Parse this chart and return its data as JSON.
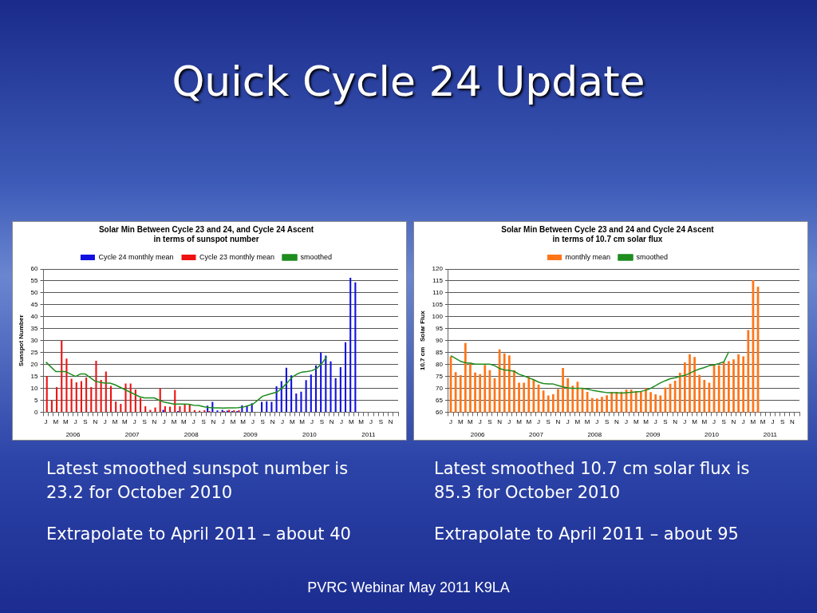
{
  "chart_data": [
    {
      "type": "bar",
      "title": "Solar Min Between Cycle 23 and 24, and Cycle 24 Ascent\nin terms of sunspot number",
      "ylabel": "Sunspot Number",
      "categories": [
        "J",
        null,
        "M",
        null,
        "M",
        null,
        "J",
        null,
        "S",
        null,
        "N",
        null,
        "J",
        null,
        "M",
        null,
        "M",
        null,
        "J",
        null,
        "S",
        null,
        "N",
        null,
        "J",
        null,
        "M",
        null,
        "M",
        null,
        "J",
        null,
        "S",
        null,
        "N",
        null,
        "J",
        null,
        "M",
        null,
        "M",
        null,
        "J",
        null,
        "S",
        null,
        "N",
        null,
        "J",
        null,
        "M",
        null,
        "M",
        null,
        "J",
        null,
        "S",
        null,
        "N",
        null,
        "J",
        null,
        "M",
        null,
        "M",
        null,
        "J",
        null,
        "S",
        null,
        "N",
        null
      ],
      "series": [
        {
          "name": "Cycle 24 monthly mean",
          "type": "bar",
          "color": "#1010e0",
          "values": [
            null,
            null,
            null,
            null,
            null,
            null,
            null,
            null,
            null,
            null,
            null,
            null,
            null,
            null,
            null,
            null,
            null,
            null,
            null,
            null,
            null,
            null,
            null,
            null,
            1,
            null,
            null,
            0.5,
            null,
            null,
            null,
            null,
            null,
            2.7,
            4.3,
            0.7,
            1,
            0.6,
            0.5,
            0.5,
            2.9,
            2.7,
            3.7,
            null,
            4.3,
            4.6,
            4.3,
            10.8,
            13.0,
            18.6,
            15.4,
            7.8,
            8.6,
            13.4,
            15.8,
            19.6,
            25.0,
            23.7,
            21.3,
            14.3,
            18.9,
            29.3,
            56.3,
            54.4,
            null,
            null,
            null,
            null,
            null,
            null,
            null,
            null
          ]
        },
        {
          "name": "Cycle 23 monthly mean",
          "type": "bar",
          "color": "#ee1111",
          "values": [
            15,
            5,
            10.5,
            30,
            22.5,
            14,
            12.5,
            13,
            14.5,
            10.5,
            21.5,
            13.5,
            17,
            11,
            4.5,
            3.5,
            12,
            12,
            9.5,
            6,
            2.5,
            1,
            2,
            10,
            2.5,
            2.3,
            9.3,
            2.5,
            3.3,
            3.3,
            0.8,
            0.6,
            0.8,
            0.5,
            null,
            null,
            0.5,
            1,
            0.8,
            0.8,
            null,
            null,
            null,
            null,
            null,
            null,
            null,
            null,
            null,
            null,
            null,
            null,
            null,
            null,
            null,
            null,
            null,
            null,
            null,
            null,
            null,
            null,
            null,
            null,
            null,
            null,
            null,
            null,
            null,
            null,
            null,
            null
          ]
        },
        {
          "name": "smoothed",
          "type": "line",
          "color": "#1e8c1e",
          "values": [
            21,
            19,
            17,
            17,
            17,
            16,
            15,
            16,
            16,
            14.5,
            13,
            12.5,
            12.2,
            12.2,
            11.5,
            10.5,
            9.5,
            8.5,
            7.5,
            6.5,
            6,
            6,
            6,
            5,
            4.2,
            3.8,
            3.4,
            3.4,
            3.4,
            3.3,
            2.9,
            2.8,
            2.3,
            2,
            1.8,
            1.8,
            1.7,
            1.8,
            1.8,
            1.9,
            2.1,
            2.7,
            3.3,
            5,
            6.7,
            7.3,
            7.9,
            8.5,
            10.3,
            12.3,
            14.7,
            16,
            16.8,
            17,
            17.4,
            18.4,
            20.4,
            23.2,
            null,
            null,
            null,
            null,
            null,
            null,
            null,
            null,
            null,
            null,
            null,
            null,
            null,
            null
          ]
        }
      ],
      "ylim": [
        0,
        60
      ],
      "yticks": [
        0,
        5,
        10,
        15,
        20,
        25,
        30,
        35,
        40,
        45,
        50,
        55,
        60
      ],
      "grid": "y",
      "legend": "top",
      "annotations": [
        "2006",
        "2007",
        "2008",
        "2009",
        "2010",
        "2011"
      ]
    },
    {
      "type": "bar",
      "title": "Solar Min Between Cycle 23 and 24 and Cycle 24 Ascent\nin terms of 10.7 cm solar flux",
      "ylabel": "10.7 cm   Solar Flux",
      "categories": [
        "J",
        null,
        "M",
        null,
        "M",
        null,
        "J",
        null,
        "S",
        null,
        "N",
        null,
        "J",
        null,
        "M",
        null,
        "M",
        null,
        "J",
        null,
        "S",
        null,
        "N",
        null,
        "J",
        null,
        "M",
        null,
        "M",
        null,
        "J",
        null,
        "S",
        null,
        "N",
        null,
        "J",
        null,
        "M",
        null,
        "M",
        null,
        "J",
        null,
        "S",
        null,
        "N",
        null,
        "J",
        null,
        "M",
        null,
        "M",
        null,
        "J",
        null,
        "S",
        null,
        "N",
        null,
        "J",
        null,
        "M",
        null,
        "M",
        null,
        "J",
        null,
        "S",
        null,
        "N",
        null
      ],
      "series": [
        {
          "name": "monthly mean",
          "type": "bar",
          "color": "#ff7518",
          "values": [
            83.4,
            76.8,
            75.5,
            89,
            80.7,
            76.6,
            75.9,
            79.8,
            77.6,
            74.3,
            86.3,
            84.6,
            83.8,
            77.5,
            72.3,
            72.3,
            74.7,
            73.7,
            71.6,
            69.1,
            67,
            67.5,
            69.7,
            78.5,
            74.3,
            71.1,
            72.8,
            70.1,
            68.5,
            65.9,
            65.7,
            66.4,
            67.1,
            68.4,
            68.5,
            68.6,
            69.5,
            69.5,
            68.8,
            68.8,
            70,
            68.4,
            67.5,
            67,
            70.3,
            71.9,
            73.2,
            76.5,
            80.9,
            84.3,
            83.1,
            75.6,
            73.5,
            72.3,
            79.8,
            79.6,
            80.9,
            81.4,
            82.1,
            84.2,
            83.4,
            94.4,
            115.3,
            112.6,
            null,
            null,
            null,
            null,
            null,
            null,
            null,
            null
          ]
        },
        {
          "name": "smoothed",
          "type": "line",
          "color": "#1e8c1e",
          "values": [
            83.7,
            82.5,
            81.3,
            80.7,
            80.5,
            80.1,
            80.1,
            80.1,
            80.1,
            79.5,
            78.3,
            77.7,
            77.5,
            77.1,
            75.9,
            75.2,
            74.4,
            73.6,
            72.6,
            72,
            71.8,
            71.8,
            71.2,
            70.6,
            70.2,
            70,
            70,
            70,
            69.7,
            69.2,
            68.8,
            68.5,
            68.2,
            68.2,
            68.2,
            68,
            68.2,
            68.3,
            68.5,
            68.7,
            69.2,
            70,
            71.1,
            72.3,
            73.2,
            74,
            74.4,
            75,
            75.4,
            76.3,
            77.3,
            78.1,
            78.7,
            79.5,
            79.8,
            80.4,
            81.1,
            85.3,
            null,
            null,
            null,
            null,
            null,
            null,
            null,
            null,
            null,
            null,
            null,
            null,
            null,
            null
          ]
        }
      ],
      "ylim": [
        60,
        120
      ],
      "yticks": [
        60,
        65,
        70,
        75,
        80,
        85,
        90,
        95,
        100,
        105,
        110,
        115,
        120
      ],
      "grid": "y",
      "legend": "top",
      "annotations": [
        "2006",
        "2007",
        "2008",
        "2009",
        "2010",
        "2011"
      ]
    },
    {
      "type": "other",
      "title": "Quick Cycle 24 Update",
      "annotations": [
        "Latest smoothed sunspot number is 23.2 for October 2010",
        "Extrapolate to April 2011 – about 40",
        "Latest smoothed 10.7 cm solar flux is 85.3 for October 2010",
        "Extrapolate to April 2011 – about 95",
        "PVRC Webinar May 2011 K9LA"
      ]
    }
  ]
}
